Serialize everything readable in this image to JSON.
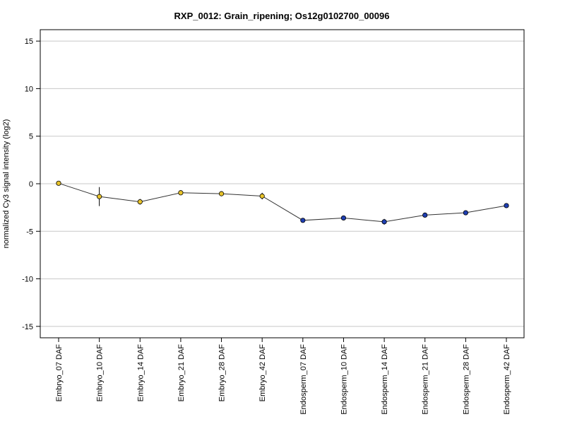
{
  "chart_data": {
    "type": "line",
    "title": "RXP_0012: Grain_ripening; Os12g0102700_00096",
    "xlabel": "",
    "ylabel": "normalized Cy3 signal intensity (log2)",
    "ylim": [
      -16.2,
      16.2
    ],
    "yticks": [
      15,
      10,
      5,
      0,
      -5,
      -10,
      -15
    ],
    "grid": true,
    "categories": [
      "Embryo_07 DAF",
      "Embryo_10 DAF",
      "Embryo_14 DAF",
      "Embryo_21 DAF",
      "Embryo_28 DAF",
      "Embryo_42 DAF",
      "Endosperm_07 DAF",
      "Endosperm_10 DAF",
      "Endosperm_14 DAF",
      "Endosperm_21 DAF",
      "Endosperm_28 DAF",
      "Endosperm_42 DAF"
    ],
    "values": [
      0.05,
      -1.35,
      -1.9,
      -0.95,
      -1.05,
      -1.3,
      -3.85,
      -3.6,
      -4.0,
      -3.3,
      -3.05,
      -2.3
    ],
    "errors": [
      0.15,
      1.0,
      0.3,
      0.2,
      0.15,
      0.35,
      0.15,
      0.2,
      0.3,
      0.25,
      0.15,
      0.15
    ],
    "point_colors": [
      "#e8c32a",
      "#e8c32a",
      "#e8c32a",
      "#e8c32a",
      "#e8c32a",
      "#e8c32a",
      "#1f3fb3",
      "#1f3fb3",
      "#1f3fb3",
      "#1f3fb3",
      "#1f3fb3",
      "#1f3fb3"
    ],
    "line_color": "#333333",
    "grid_color": "#c8c8c8"
  }
}
